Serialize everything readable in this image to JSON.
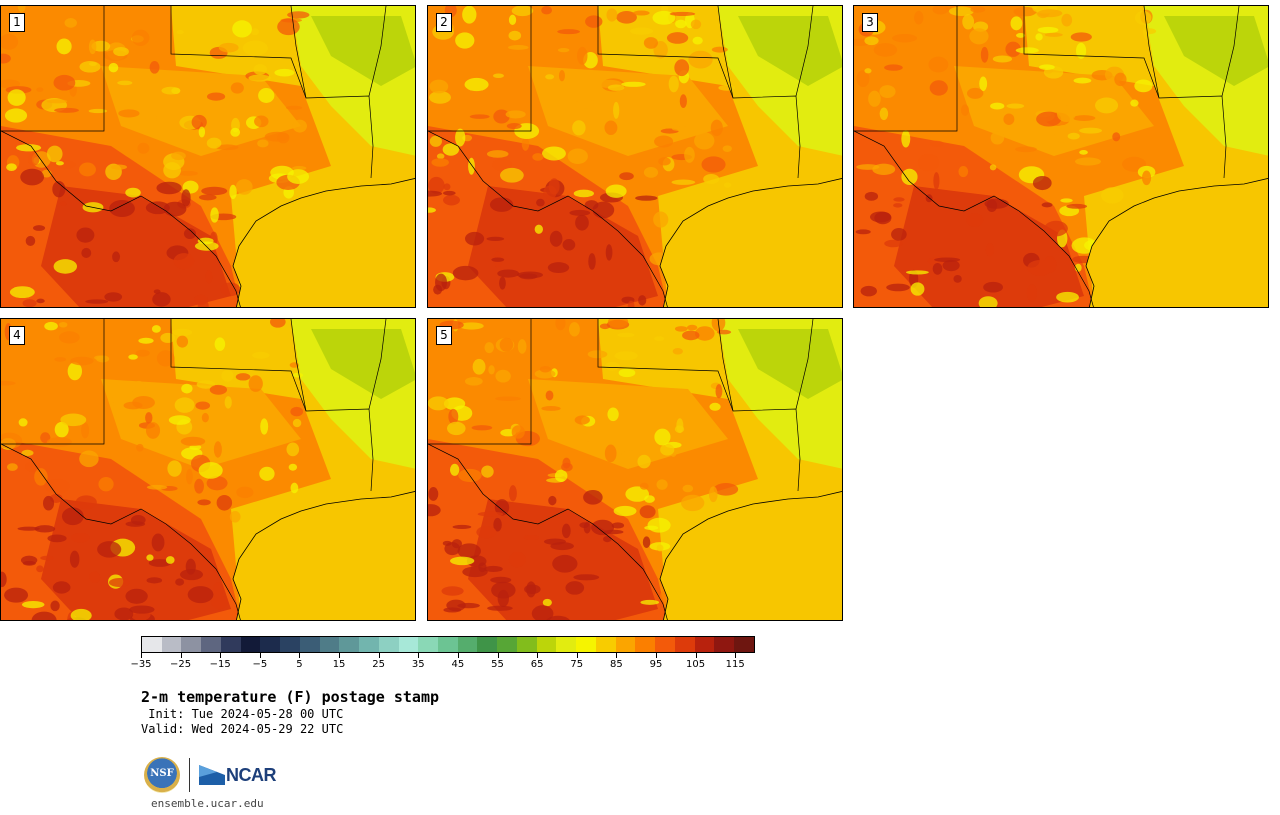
{
  "panels": [
    {
      "label": "1",
      "seed": 11
    },
    {
      "label": "2",
      "seed": 23
    },
    {
      "label": "3",
      "seed": 37
    },
    {
      "label": "4",
      "seed": 41
    },
    {
      "label": "5",
      "seed": 53
    }
  ],
  "colorbar": {
    "colors": [
      "#e6e7ea",
      "#b9bcc6",
      "#8d92a2",
      "#5e6680",
      "#303a5c",
      "#121a38",
      "#1c2b4c",
      "#2a4262",
      "#3b5d76",
      "#4f7c88",
      "#5f9899",
      "#72b5ae",
      "#8dd0c2",
      "#a7e8d8",
      "#8ad8b6",
      "#6cc493",
      "#55ad6d",
      "#3f9448",
      "#57a636",
      "#82bd1c",
      "#bcd50a",
      "#e2ec10",
      "#f6f400",
      "#f8cc00",
      "#fba500",
      "#fb7f00",
      "#f35a0a",
      "#dd3b0b",
      "#b8220d",
      "#8f1710",
      "#6e1610"
    ],
    "tick_labels": [
      "−35",
      "−25",
      "−15",
      "−5",
      "5",
      "15",
      "25",
      "35",
      "45",
      "55",
      "65",
      "75",
      "85",
      "95",
      "105",
      "115"
    ],
    "tick_values": [
      -35,
      -25,
      -15,
      -5,
      5,
      15,
      25,
      35,
      45,
      55,
      65,
      75,
      85,
      95,
      105,
      115
    ],
    "min": -35,
    "max": 120
  },
  "title": "2-m temperature (F) postage stamp",
  "init": " Init: Tue 2024-05-28 00 UTC",
  "valid": "Valid: Wed 2024-05-29 22 UTC",
  "logos": {
    "nsf": "NSF",
    "ncar": "NCAR"
  },
  "url": "ensemble.ucar.edu"
}
